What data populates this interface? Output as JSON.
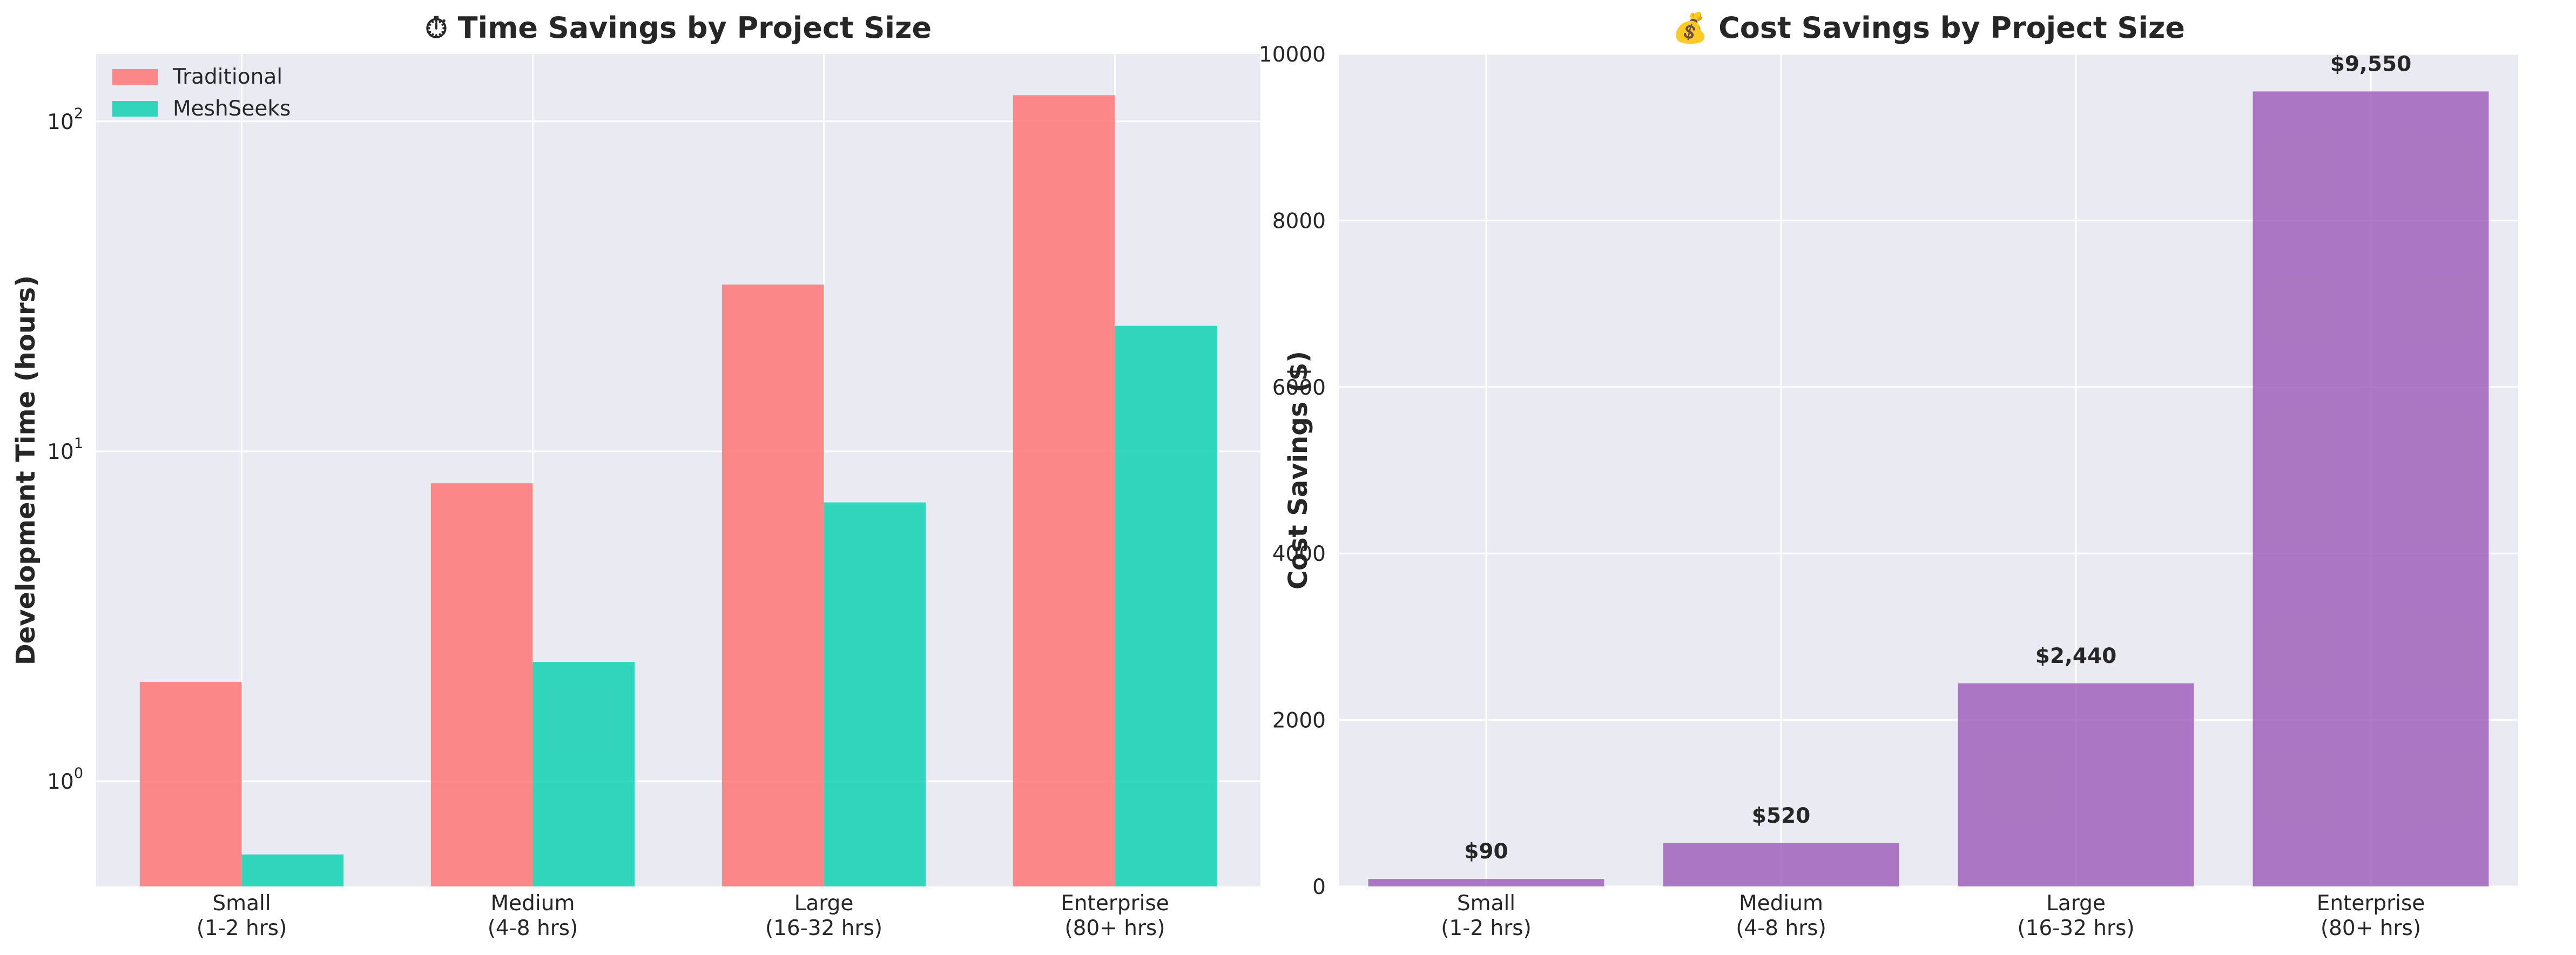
{
  "charts": [
    {
      "type": "bar",
      "title": "⏱ Time Savings by Project Size",
      "ylabel": "Development Time (hours)",
      "yscale": "log",
      "ylim": [
        0.48,
        160
      ],
      "yticks": [
        {
          "value": 1,
          "base": "10",
          "exp": "0"
        },
        {
          "value": 10,
          "base": "10",
          "exp": "1"
        },
        {
          "value": 100,
          "base": "10",
          "exp": "2"
        }
      ],
      "categories": [
        [
          "Small",
          "(1-2 hrs)"
        ],
        [
          "Medium",
          "(4-8 hrs)"
        ],
        [
          "Large",
          "(16-32 hrs)"
        ],
        [
          "Enterprise",
          "(80+ hrs)"
        ]
      ],
      "series": [
        {
          "name": "Traditional",
          "color": "#ff7675",
          "values": [
            2,
            8,
            32,
            120
          ]
        },
        {
          "name": "MeshSeeks",
          "color": "#11d1b1",
          "values": [
            0.6,
            2.3,
            7,
            24
          ]
        }
      ],
      "legend_position": "upper-left",
      "grid": true
    },
    {
      "type": "bar",
      "title": "💰 Cost Savings by Project Size",
      "ylabel": "Cost Savings ($)",
      "yscale": "linear",
      "ylim": [
        0,
        10000
      ],
      "yticks": [
        0,
        2000,
        4000,
        6000,
        8000,
        10000
      ],
      "categories": [
        [
          "Small",
          "(1-2 hrs)"
        ],
        [
          "Medium",
          "(4-8 hrs)"
        ],
        [
          "Large",
          "(16-32 hrs)"
        ],
        [
          "Enterprise",
          "(80+ hrs)"
        ]
      ],
      "values": [
        90,
        520,
        2440,
        9550
      ],
      "value_labels": [
        "$90",
        "$520",
        "$2,440",
        "$9,550"
      ],
      "color": "#9b59b6",
      "grid": true
    }
  ]
}
